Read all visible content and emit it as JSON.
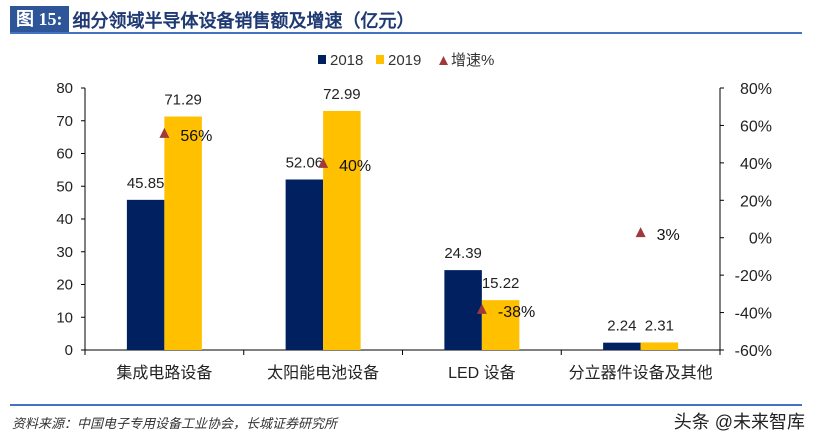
{
  "header": {
    "figure_label": "图 15:",
    "title": "细分领域半导体设备销售额及增速（亿元）"
  },
  "footer": {
    "source": "资料来源：中国电子专用设备工业协会，长城证券研究所",
    "watermark": "头条 @未来智库"
  },
  "chart_data": {
    "type": "bar",
    "categories": [
      "集成电路设备",
      "太阳能电池设备",
      "LED 设备",
      "分立器件设备及其他"
    ],
    "series": [
      {
        "name": "2018",
        "values": [
          45.85,
          52.06,
          24.39,
          2.24
        ],
        "color": "#002060",
        "axis": "left"
      },
      {
        "name": "2019",
        "values": [
          71.29,
          72.99,
          15.22,
          2.31
        ],
        "color": "#ffc000",
        "axis": "left"
      },
      {
        "name": "增速%",
        "type": "scatter",
        "marker": "triangle",
        "values": [
          56,
          40,
          -38,
          3
        ],
        "labels": [
          "56%",
          "40%",
          "-38%",
          "3%"
        ],
        "color": "#a0393a",
        "axis": "right"
      }
    ],
    "left_axis": {
      "ylim": [
        0,
        80
      ],
      "ticks": [
        "0",
        "10",
        "20",
        "30",
        "40",
        "50",
        "60",
        "70",
        "80"
      ]
    },
    "right_axis": {
      "ylim": [
        -60,
        80
      ],
      "ticks": [
        "-60%",
        "-40%",
        "-20%",
        "0%",
        "20%",
        "40%",
        "60%",
        "80%"
      ]
    },
    "grid": false,
    "legend": "top"
  }
}
